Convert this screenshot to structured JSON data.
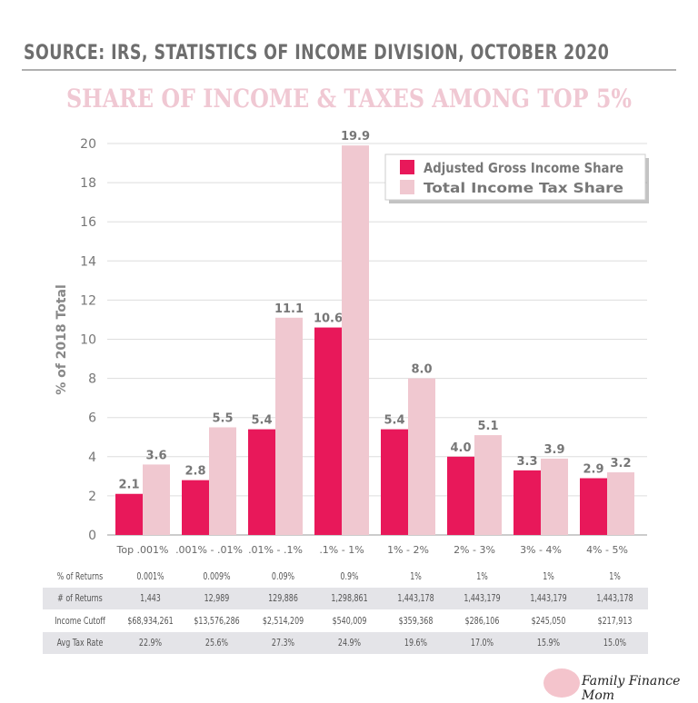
{
  "source": "SOURCE: IRS, STATISTICS OF INCOME DIVISION, OCTOBER 2020",
  "chart_data": {
    "type": "bar",
    "title": "SHARE OF INCOME & TAXES AMONG TOP 5%",
    "ylabel": "% of 2018 Total",
    "xlabel": "",
    "ylim": [
      0,
      20
    ],
    "yticks": [
      0,
      2,
      4,
      6,
      8,
      10,
      12,
      14,
      16,
      18,
      20
    ],
    "grid": true,
    "legend": "top-right",
    "categories": [
      "Top .001%",
      ".001% - .01%",
      ".01% - .1%",
      ".1% - 1%",
      "1% - 2%",
      "2% - 3%",
      "3% - 4%",
      "4% - 5%"
    ],
    "series": [
      {
        "name": "Adjusted Gross Income Share",
        "color": "#e8185a",
        "values": [
          2.1,
          2.8,
          5.4,
          10.6,
          5.4,
          4.0,
          3.3,
          2.9
        ]
      },
      {
        "name": "Total Income Tax Share",
        "color": "#f0c8d0",
        "values": [
          3.6,
          5.5,
          11.1,
          19.9,
          8.0,
          5.1,
          3.9,
          3.2
        ]
      }
    ]
  },
  "table": [
    {
      "label": "% of Returns",
      "values": [
        "0.001%",
        "0.009%",
        "0.09%",
        "0.9%",
        "1%",
        "1%",
        "1%",
        "1%"
      ]
    },
    {
      "label": "# of Returns",
      "values": [
        "1,443",
        "12,989",
        "129,886",
        "1,298,861",
        "1,443,178",
        "1,443,179",
        "1,443,179",
        "1,443,178"
      ]
    },
    {
      "label": "Income Cutoff",
      "values": [
        "$68,934,261",
        "$13,576,286",
        "$2,514,209",
        "$540,009",
        "$359,368",
        "$286,106",
        "$245,050",
        "$217,913"
      ]
    },
    {
      "label": "Avg Tax Rate",
      "values": [
        "22.9%",
        "25.6%",
        "27.3%",
        "24.9%",
        "19.6%",
        "17.0%",
        "15.9%",
        "15.0%"
      ]
    }
  ],
  "logo": "Family Finance Mom"
}
